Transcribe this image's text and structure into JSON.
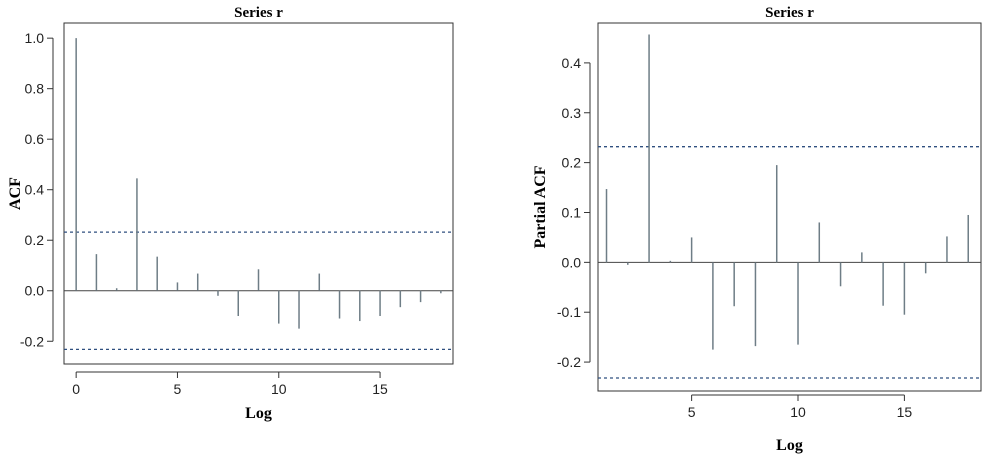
{
  "chart_data": [
    {
      "type": "bar",
      "title": "Series r",
      "xlabel": "Log",
      "ylabel": "ACF",
      "x": [
        0,
        1,
        2,
        3,
        4,
        5,
        6,
        7,
        8,
        9,
        10,
        11,
        12,
        13,
        14,
        15,
        16,
        17,
        18
      ],
      "values": [
        1.0,
        0.145,
        0.01,
        0.445,
        0.135,
        0.033,
        0.068,
        -0.02,
        -0.1,
        0.085,
        -0.13,
        -0.15,
        0.068,
        -0.11,
        -0.12,
        -0.1,
        -0.065,
        -0.045,
        -0.01
      ],
      "confidence_bounds": [
        0.232,
        -0.232
      ],
      "xlim": [
        -0.6,
        18.6
      ],
      "ylim": [
        -0.29,
        1.06
      ],
      "xticks": [
        0,
        5,
        10,
        15
      ],
      "yticks": [
        -0.2,
        0.0,
        0.2,
        0.4,
        0.6,
        0.8,
        1.0
      ],
      "ytick_labels": [
        "-0.2",
        "0.0",
        "0.2",
        "0.4",
        "0.6",
        "0.8",
        "1.0"
      ],
      "grid": false,
      "color": "#6e7d86",
      "bound_color": "#2f4f7f"
    },
    {
      "type": "bar",
      "title": "Series r",
      "xlabel": "Log",
      "ylabel": "Partial ACF",
      "x": [
        1,
        2,
        3,
        4,
        5,
        6,
        7,
        8,
        9,
        10,
        11,
        12,
        13,
        14,
        15,
        16,
        17,
        18
      ],
      "values": [
        0.147,
        -0.005,
        0.457,
        0.003,
        0.05,
        -0.175,
        -0.088,
        -0.168,
        0.195,
        -0.165,
        0.08,
        -0.048,
        0.02,
        -0.087,
        -0.105,
        -0.022,
        0.052,
        0.095
      ],
      "confidence_bounds": [
        0.232,
        -0.232
      ],
      "xlim": [
        0.6,
        18.6
      ],
      "ylim": [
        -0.258,
        0.48
      ],
      "xticks": [
        5,
        10,
        15
      ],
      "yticks": [
        -0.2,
        -0.1,
        0.0,
        0.1,
        0.2,
        0.3,
        0.4
      ],
      "ytick_labels": [
        "-0.2",
        "-0.1",
        "0.0",
        "0.1",
        "0.2",
        "0.3",
        "0.4"
      ],
      "grid": false,
      "color": "#6e7d86",
      "bound_color": "#2f4f7f"
    }
  ]
}
